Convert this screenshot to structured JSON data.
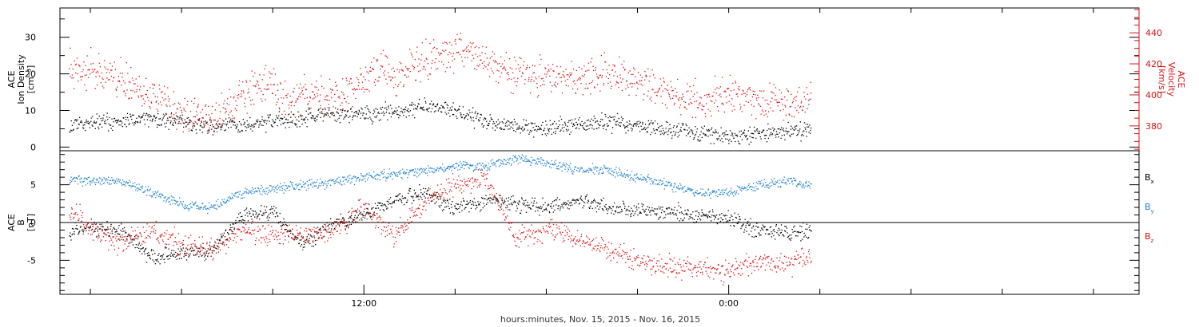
{
  "chart_data": {
    "type": "scatter",
    "xlabel": "hours:minutes, Nov. 15, 2015 - Nov. 16, 2015",
    "x_unit": "hours since 2015-11-15 00:00",
    "x_range": [
      2.0,
      37.5
    ],
    "x_ticks": [
      {
        "x": 12,
        "label": "12:00"
      },
      {
        "x": 24,
        "label": "0:00"
      }
    ],
    "panels": [
      {
        "name": "top",
        "left_axis": {
          "label_lines": [
            "ACE",
            "Ion Density",
            "[cm⁻³]"
          ],
          "range": [
            -1,
            38
          ],
          "ticks": [
            0,
            10,
            20,
            30
          ],
          "color": "#000000"
        },
        "right_axis": {
          "label_lines": [
            "ACE",
            "Velocity",
            "[km/s]"
          ],
          "range": [
            364,
            456
          ],
          "ticks": [
            380,
            400,
            420,
            440
          ],
          "color": "#dd1111"
        },
        "series": [
          {
            "id": "density",
            "axis": "left",
            "color": "#000000",
            "start": 2.3,
            "end": 26.7,
            "noise": 1.6,
            "points": [
              [
                2.3,
                6
              ],
              [
                3,
                7
              ],
              [
                4,
                7
              ],
              [
                5,
                8
              ],
              [
                6,
                7
              ],
              [
                7,
                6
              ],
              [
                8,
                6
              ],
              [
                9,
                7
              ],
              [
                10,
                8
              ],
              [
                10.5,
                9
              ],
              [
                11,
                9
              ],
              [
                12,
                9
              ],
              [
                13,
                10
              ],
              [
                14,
                11
              ],
              [
                15,
                10
              ],
              [
                16,
                7
              ],
              [
                17,
                6
              ],
              [
                18,
                5
              ],
              [
                19,
                6
              ],
              [
                20,
                7
              ],
              [
                21,
                6
              ],
              [
                22,
                5
              ],
              [
                23,
                4
              ],
              [
                24,
                3
              ],
              [
                25,
                4
              ],
              [
                26,
                4
              ],
              [
                26.7,
                5
              ]
            ]
          },
          {
            "id": "velocity",
            "axis": "right",
            "color": "#dd1111",
            "start": 2.3,
            "end": 26.7,
            "noise": 8,
            "points": [
              [
                2.3,
                420
              ],
              [
                3,
                415
              ],
              [
                4,
                410
              ],
              [
                5,
                398
              ],
              [
                6,
                390
              ],
              [
                7,
                385
              ],
              [
                8,
                400
              ],
              [
                9,
                408
              ],
              [
                9.5,
                395
              ],
              [
                10,
                402
              ],
              [
                11,
                398
              ],
              [
                12,
                408
              ],
              [
                12.5,
                418
              ],
              [
                13,
                412
              ],
              [
                14,
                422
              ],
              [
                15,
                428
              ],
              [
                16,
                422
              ],
              [
                17,
                414
              ],
              [
                18,
                412
              ],
              [
                19,
                410
              ],
              [
                20,
                415
              ],
              [
                21,
                408
              ],
              [
                22,
                402
              ],
              [
                23,
                398
              ],
              [
                24,
                400
              ],
              [
                25,
                396
              ],
              [
                26,
                394
              ],
              [
                26.7,
                396
              ]
            ]
          }
        ]
      },
      {
        "name": "bottom",
        "left_axis": {
          "label_lines": [
            "ACE",
            "B",
            "[nT]"
          ],
          "range": [
            -9.5,
            9.5
          ],
          "ticks": [
            -5,
            0,
            5
          ],
          "color": "#000000"
        },
        "zero_line": true,
        "legend": [
          {
            "base": "B",
            "sub": "x",
            "color": "#000000"
          },
          {
            "base": "B",
            "sub": "y",
            "color": "#1f80d0"
          },
          {
            "base": "B",
            "sub": "z",
            "color": "#dd1111"
          }
        ],
        "series": [
          {
            "id": "bx",
            "name": "Bx",
            "color": "#000000",
            "start": 2.3,
            "end": 26.7,
            "noise": 0.7,
            "points": [
              [
                2.3,
                -1
              ],
              [
                3,
                -0.5
              ],
              [
                4,
                -1
              ],
              [
                5,
                -4.5
              ],
              [
                6,
                -4
              ],
              [
                7,
                -3.5
              ],
              [
                8,
                1
              ],
              [
                9,
                1.5
              ],
              [
                10,
                -3
              ],
              [
                11,
                0
              ],
              [
                12,
                1
              ],
              [
                13,
                3
              ],
              [
                14,
                4
              ],
              [
                15,
                2
              ],
              [
                16,
                3
              ],
              [
                17,
                2.5
              ],
              [
                18,
                2
              ],
              [
                19,
                3
              ],
              [
                20,
                2
              ],
              [
                21,
                1.5
              ],
              [
                22,
                1.5
              ],
              [
                23,
                1
              ],
              [
                24,
                0.5
              ],
              [
                25,
                -1
              ],
              [
                26,
                -1.5
              ],
              [
                26.7,
                -1
              ]
            ]
          },
          {
            "id": "by",
            "name": "By",
            "color": "#1f80d0",
            "start": 2.3,
            "end": 26.7,
            "noise": 0.45,
            "points": [
              [
                2.3,
                6
              ],
              [
                3,
                5.5
              ],
              [
                4,
                5.5
              ],
              [
                5,
                4
              ],
              [
                6,
                2.5
              ],
              [
                7,
                2
              ],
              [
                8,
                4
              ],
              [
                9,
                4.5
              ],
              [
                10,
                5
              ],
              [
                11,
                5.5
              ],
              [
                12,
                6
              ],
              [
                13,
                6.5
              ],
              [
                14,
                7
              ],
              [
                15,
                7.5
              ],
              [
                16,
                7.5
              ],
              [
                17,
                8.5
              ],
              [
                18,
                8
              ],
              [
                19,
                7
              ],
              [
                20,
                7
              ],
              [
                21,
                6
              ],
              [
                22,
                5
              ],
              [
                23,
                4
              ],
              [
                24,
                4
              ],
              [
                25,
                5
              ],
              [
                26,
                5.5
              ],
              [
                26.7,
                5
              ]
            ]
          },
          {
            "id": "bz",
            "name": "Bz",
            "color": "#dd1111",
            "start": 2.3,
            "end": 26.7,
            "noise": 1.0,
            "points": [
              [
                2.3,
                2
              ],
              [
                3,
                -1
              ],
              [
                4,
                -2.5
              ],
              [
                5,
                -1
              ],
              [
                6,
                -3
              ],
              [
                7,
                -3.5
              ],
              [
                8,
                -1
              ],
              [
                9,
                -1.5
              ],
              [
                10,
                -1.5
              ],
              [
                11,
                -1
              ],
              [
                12,
                2
              ],
              [
                13,
                -2
              ],
              [
                14,
                3
              ],
              [
                15,
                5
              ],
              [
                16,
                6
              ],
              [
                17,
                -2
              ],
              [
                18,
                -1
              ],
              [
                19,
                -2
              ],
              [
                20,
                -3.5
              ],
              [
                21,
                -5
              ],
              [
                22,
                -6
              ],
              [
                23,
                -6
              ],
              [
                24,
                -6.5
              ],
              [
                25,
                -5
              ],
              [
                26,
                -5.5
              ],
              [
                26.7,
                -4.5
              ]
            ]
          }
        ]
      }
    ]
  }
}
